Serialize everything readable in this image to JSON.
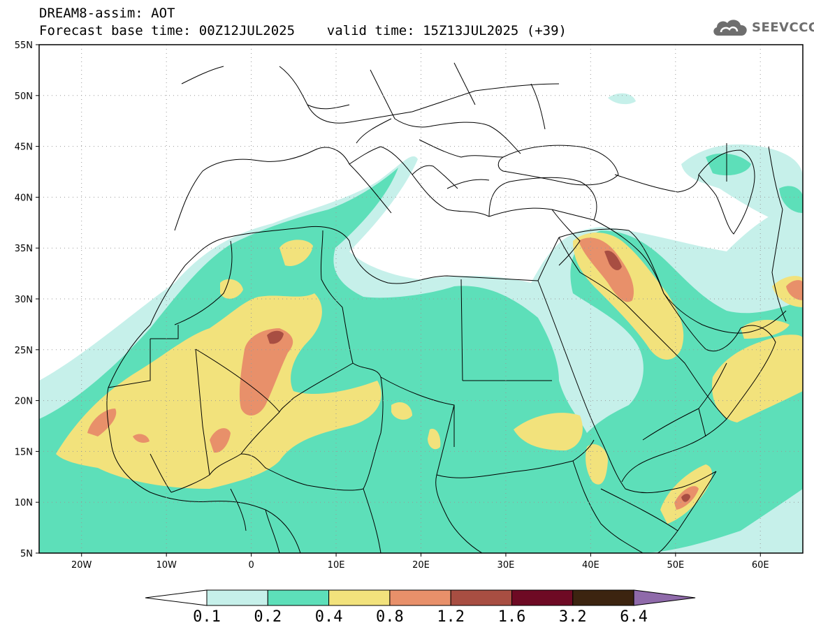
{
  "header": {
    "title_line1": "DREAM8-assim: AOT",
    "title_line2": "Forecast base time: 00Z12JUL2025    valid time: 15Z13JUL2025 (+39)",
    "logo_text": "SEEVCCC",
    "logo_icon": "cloud-icon"
  },
  "map": {
    "lat_labels": [
      "55N",
      "50N",
      "45N",
      "40N",
      "35N",
      "30N",
      "25N",
      "20N",
      "15N",
      "10N",
      "5N"
    ],
    "lat_values": [
      55,
      50,
      45,
      40,
      35,
      30,
      25,
      20,
      15,
      10,
      5
    ],
    "lon_labels": [
      "20W",
      "10W",
      "0",
      "10E",
      "20E",
      "30E",
      "40E",
      "50E",
      "60E"
    ],
    "lon_values": [
      -20,
      -10,
      0,
      10,
      20,
      30,
      40,
      50,
      60
    ],
    "lon_range": [
      -25,
      65
    ],
    "lat_range": [
      5,
      55
    ]
  },
  "colorbar": {
    "labels": [
      "0.1",
      "0.2",
      "0.4",
      "0.8",
      "1.2",
      "1.6",
      "3.2",
      "6.4"
    ],
    "colors": [
      "#c6f0ea",
      "#5ddfb9",
      "#f2e27c",
      "#e8906a",
      "#a84e42",
      "#6e0a24",
      "#3c2410",
      "#8f6aaa"
    ],
    "under_color": "#ffffff"
  },
  "colors": {
    "c01": "#c6f0ea",
    "c02": "#5ddfb9",
    "c04": "#f2e27c",
    "c08": "#e8906a",
    "c12": "#a84e42",
    "border": "#000000"
  }
}
